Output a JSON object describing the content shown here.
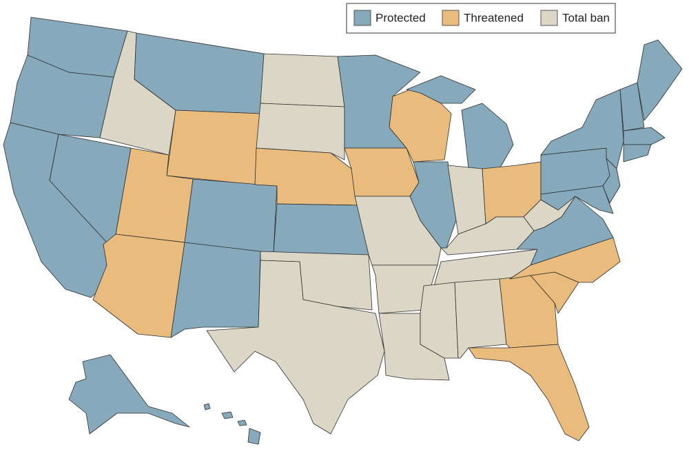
{
  "legend": [
    {
      "label": "Protected",
      "color": "#86a9bb"
    },
    {
      "label": "Threatened",
      "color": "#e9bb7d"
    },
    {
      "label": "Total ban",
      "color": "#dbd6c6"
    }
  ]
}
